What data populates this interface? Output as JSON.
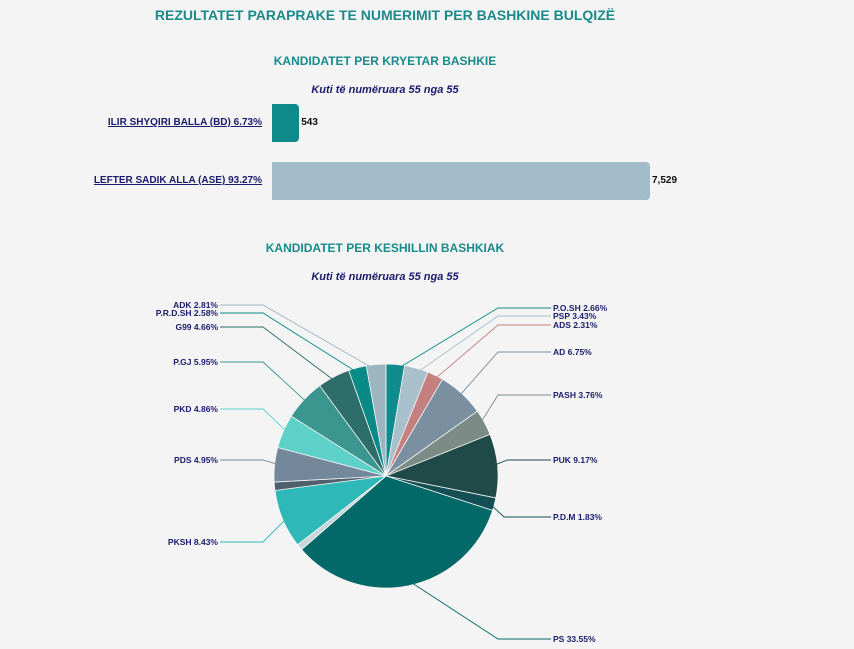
{
  "page": {
    "title": "REZULTATET PARAPRAKE TE NUMERIMIT PER BASHKINE BULQIZË"
  },
  "chart_data": [
    {
      "type": "bar",
      "title": "KANDIDATET PER KRYETAR BASHKIE",
      "subtitle": "Kuti të numëruara 55 nga 55",
      "categories": [
        "ILIR SHYQIRI BALLA (BD) 6.73%",
        "LEFTER SADIK ALLA (ASE) 93.27%"
      ],
      "values": [
        543,
        7529
      ],
      "value_labels": [
        "543",
        "7,529"
      ],
      "colors": [
        "#0e8a8a",
        "#a3bcca"
      ],
      "orientation": "horizontal"
    },
    {
      "type": "pie",
      "title": "KANDIDATET PER KESHILLIN BASHKIAK",
      "subtitle": "Kuti të numëruara 55 nga 55",
      "slices": [
        {
          "label": "P.O.SH 2.66%",
          "value": 2.66,
          "color": "#0f8b8d"
        },
        {
          "label": "PSP 3.43%",
          "value": 3.43,
          "color": "#a8c0cc"
        },
        {
          "label": "ADS 2.31%",
          "value": 2.31,
          "color": "#c47f7f"
        },
        {
          "label": "AD 6.75%",
          "value": 6.75,
          "color": "#7a8fa0"
        },
        {
          "label": "PASH 3.76%",
          "value": 3.76,
          "color": "#7b8c87"
        },
        {
          "label": "PUK 9.17%",
          "value": 9.17,
          "color": "#1f4a48"
        },
        {
          "label": "P.D.M 1.83%",
          "value": 1.83,
          "color": "#144f55"
        },
        {
          "label": "PS 33.55%",
          "value": 33.55,
          "color": "#026868"
        },
        {
          "label": "",
          "value": 0.9,
          "color": "#c8d6dc"
        },
        {
          "label": "PKSH 8.43%",
          "value": 8.43,
          "color": "#2fb8b8"
        },
        {
          "label": "",
          "value": 1.2,
          "color": "#4f5f6c"
        },
        {
          "label": "PDS 4.95%",
          "value": 4.95,
          "color": "#73889a"
        },
        {
          "label": "PKD 4.86%",
          "value": 4.86,
          "color": "#5dd1c8"
        },
        {
          "label": "P.GJ 5.95%",
          "value": 5.95,
          "color": "#3a968e"
        },
        {
          "label": "G99 4.66%",
          "value": 4.66,
          "color": "#2e6e6a"
        },
        {
          "label": "P.R.D.SH 2.58%",
          "value": 2.58,
          "color": "#0a8a86"
        },
        {
          "label": "ADK 2.81%",
          "value": 2.81,
          "color": "#9db5c1"
        }
      ]
    }
  ]
}
